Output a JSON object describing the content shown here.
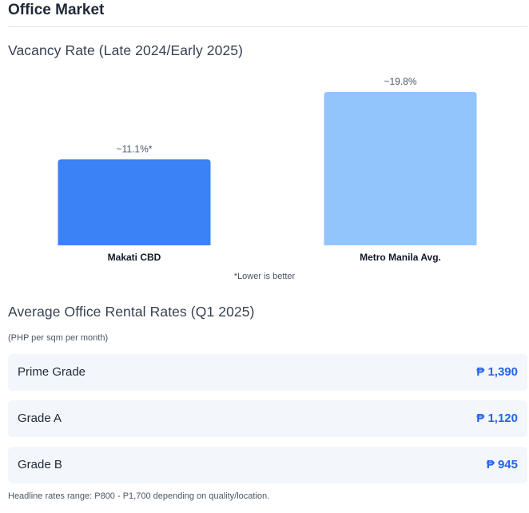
{
  "page_title": "Office Market",
  "vacancy": {
    "title": "Vacancy Rate (Late 2024/Early 2025)",
    "footnote": "*Lower is better"
  },
  "chart_data": {
    "type": "bar",
    "categories": [
      "Makati CBD",
      "Metro Manila Avg."
    ],
    "values": [
      11.1,
      19.8
    ],
    "data_labels": [
      "~11.1%*",
      "~19.8%"
    ],
    "colors": [
      "#3b82f6",
      "#93c5fd"
    ],
    "ylim": [
      0,
      19.8
    ],
    "grid": false,
    "title": "",
    "xlabel": "",
    "ylabel": ""
  },
  "rental": {
    "title": "Average Office Rental Rates (Q1 2025)",
    "units": "(PHP per sqm per month)",
    "rows": [
      {
        "label": "Prime Grade",
        "value": "₱ 1,390"
      },
      {
        "label": "Grade A",
        "value": "₱ 1,120"
      },
      {
        "label": "Grade B",
        "value": "₱ 945"
      }
    ],
    "footer": "Headline rates range: P800 - P1,700 depending on quality/location."
  }
}
